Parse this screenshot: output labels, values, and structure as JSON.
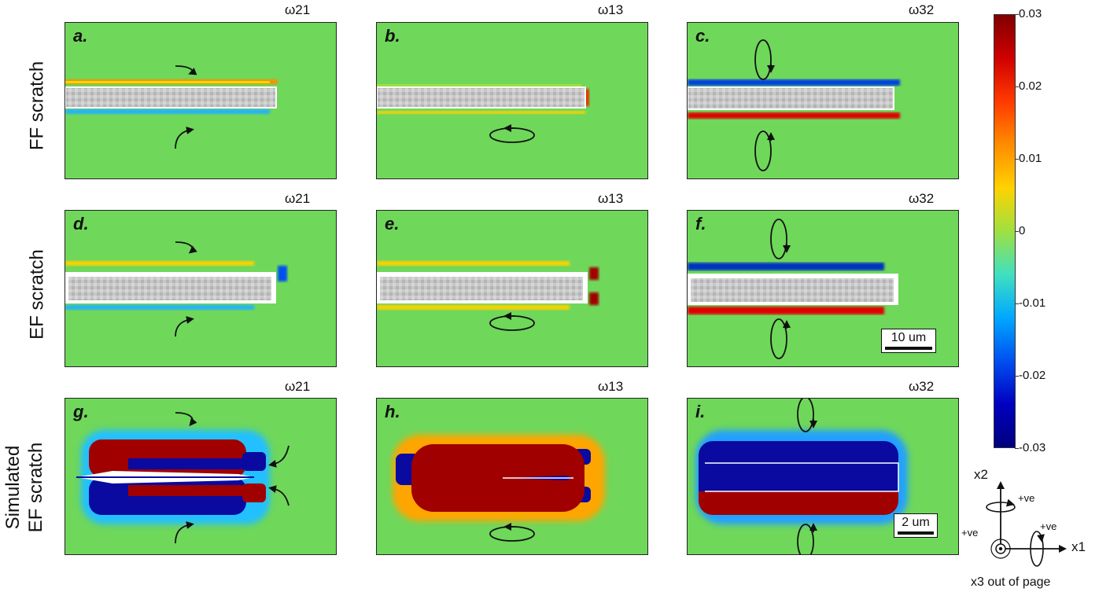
{
  "row_labels": [
    "FF scratch",
    "EF scratch",
    "Simulated EF scratch"
  ],
  "row_labels_split": {
    "simulated_line1": "Simulated",
    "simulated_line2": "EF scratch"
  },
  "panels": [
    {
      "label": "a.",
      "component": "ω21"
    },
    {
      "label": "b.",
      "component": "ω13"
    },
    {
      "label": "c.",
      "component": "ω32"
    },
    {
      "label": "d.",
      "component": "ω21"
    },
    {
      "label": "e.",
      "component": "ω13"
    },
    {
      "label": "f.",
      "component": "ω32"
    },
    {
      "label": "g.",
      "component": "ω21"
    },
    {
      "label": "h.",
      "component": "ω13"
    },
    {
      "label": "i.",
      "component": "ω32"
    }
  ],
  "scalebars": {
    "experimental": "10 um",
    "simulated": "2 um"
  },
  "colorbar": {
    "ticks": [
      "0.03",
      "0.02",
      "0.01",
      "0",
      "-0.01",
      "-0.02",
      "-0.03"
    ],
    "colormap": "jet"
  },
  "axes_legend": {
    "x1": "x1",
    "x2": "x2",
    "positive_1": "+ve",
    "positive_2": "+ve",
    "positive_3": "+ve",
    "x3_note": "x3 out of page"
  },
  "colors": {
    "background_field": "#6fd75a",
    "positive": "#8b0000",
    "negative": "#00008b"
  }
}
